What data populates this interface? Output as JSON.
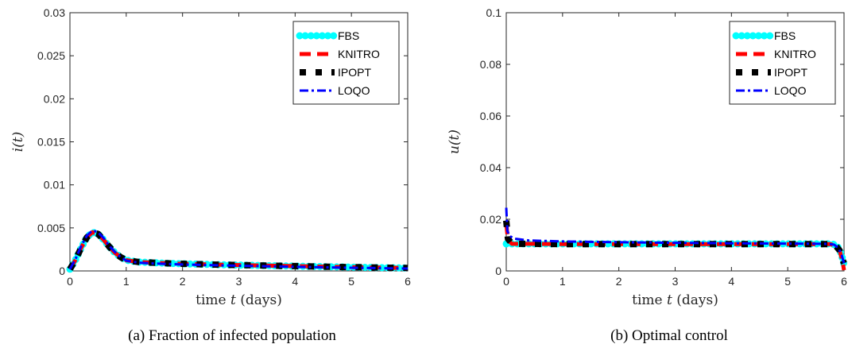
{
  "chart_data": [
    {
      "type": "line",
      "caption": "(a) Fraction of infected population",
      "xlabel": "time t (days)",
      "ylabel": "i(t)",
      "xlim": [
        0,
        6
      ],
      "ylim": [
        0,
        0.03
      ],
      "x_ticks": [
        "0",
        "1",
        "2",
        "3",
        "4",
        "5",
        "6"
      ],
      "y_ticks": [
        "0",
        "0.005",
        "0.01",
        "0.015",
        "0.02",
        "0.025",
        "0.03"
      ],
      "legend_position": "top-right",
      "series": [
        {
          "name": "FBS",
          "color": "#00ffff",
          "style": "dots-thick",
          "x": [
            0,
            0.1,
            0.2,
            0.3,
            0.4,
            0.5,
            0.6,
            0.7,
            0.8,
            0.9,
            1.0,
            1.2,
            1.4,
            1.6,
            1.8,
            2.0,
            2.5,
            3.0,
            3.5,
            4.0,
            4.5,
            5.0,
            5.5,
            6.0
          ],
          "y": [
            0.0002,
            0.0013,
            0.0027,
            0.0039,
            0.0045,
            0.0043,
            0.0036,
            0.0028,
            0.0021,
            0.0016,
            0.00125,
            0.00105,
            0.00098,
            0.00092,
            0.00087,
            0.00083,
            0.00075,
            0.00068,
            0.00062,
            0.00056,
            0.0005,
            0.00044,
            0.00039,
            0.00034
          ]
        },
        {
          "name": "KNITRO",
          "color": "#ff0000",
          "style": "dashed-thick",
          "x": [
            0,
            0.1,
            0.2,
            0.3,
            0.4,
            0.5,
            0.6,
            0.7,
            0.8,
            0.9,
            1.0,
            1.2,
            1.4,
            1.6,
            1.8,
            2.0,
            2.5,
            3.0,
            3.5,
            4.0,
            4.5,
            5.0,
            5.5,
            6.0
          ],
          "y": [
            0.0002,
            0.0013,
            0.0027,
            0.0039,
            0.0045,
            0.0043,
            0.0036,
            0.0028,
            0.0021,
            0.0016,
            0.00125,
            0.00105,
            0.00098,
            0.00092,
            0.00087,
            0.00083,
            0.00075,
            0.00068,
            0.00062,
            0.00056,
            0.0005,
            0.00044,
            0.00039,
            0.00034
          ]
        },
        {
          "name": "IPOPT",
          "color": "#000000",
          "style": "square-dots",
          "x": [
            0,
            0.1,
            0.2,
            0.3,
            0.4,
            0.5,
            0.6,
            0.7,
            0.8,
            0.9,
            1.0,
            1.2,
            1.4,
            1.6,
            1.8,
            2.0,
            2.5,
            3.0,
            3.5,
            4.0,
            4.5,
            5.0,
            5.5,
            6.0
          ],
          "y": [
            0.0002,
            0.0013,
            0.0027,
            0.0039,
            0.0045,
            0.0043,
            0.0036,
            0.0028,
            0.0021,
            0.0016,
            0.00125,
            0.00105,
            0.00098,
            0.00092,
            0.00087,
            0.00083,
            0.00075,
            0.00068,
            0.00062,
            0.00056,
            0.0005,
            0.00044,
            0.00039,
            0.00034
          ]
        },
        {
          "name": "LOQO",
          "color": "#0000ff",
          "style": "dash-dot",
          "x": [
            0,
            0.1,
            0.2,
            0.3,
            0.4,
            0.5,
            0.6,
            0.7,
            0.8,
            0.9,
            1.0,
            1.2,
            1.4,
            1.6,
            1.8,
            2.0,
            2.5,
            3.0,
            3.5,
            4.0,
            4.5,
            5.0,
            5.5,
            6.0
          ],
          "y": [
            0.0002,
            0.0014,
            0.0029,
            0.0041,
            0.0047,
            0.0045,
            0.0038,
            0.0029,
            0.0022,
            0.0016,
            0.0012,
            0.00098,
            0.0009,
            0.00084,
            0.00079,
            0.00075,
            0.00067,
            0.0006,
            0.00054,
            0.00048,
            0.00042,
            0.00037,
            0.00032,
            0.00028
          ]
        }
      ]
    },
    {
      "type": "line",
      "caption": "(b) Optimal control",
      "xlabel": "time t (days)",
      "ylabel": "u(t)",
      "xlim": [
        0,
        6
      ],
      "ylim": [
        0,
        0.1
      ],
      "x_ticks": [
        "0",
        "1",
        "2",
        "3",
        "4",
        "5",
        "6"
      ],
      "y_ticks": [
        "0",
        "0.02",
        "0.04",
        "0.06",
        "0.08",
        "0.1"
      ],
      "legend_position": "top-right",
      "series": [
        {
          "name": "FBS",
          "color": "#00ffff",
          "style": "dots-thick",
          "x": [
            0,
            0.03,
            0.1,
            0.5,
            1,
            2,
            3,
            4,
            5,
            5.75,
            5.85,
            5.92,
            5.97,
            6.0
          ],
          "y": [
            0.0105,
            0.0105,
            0.0105,
            0.0105,
            0.0105,
            0.0105,
            0.0105,
            0.0105,
            0.0105,
            0.0105,
            0.0102,
            0.0085,
            0.005,
            0.0025
          ]
        },
        {
          "name": "KNITRO",
          "color": "#ff0000",
          "style": "dashed-thick",
          "x": [
            0,
            0.03,
            0.1,
            0.5,
            1,
            2,
            3,
            4,
            5,
            5.75,
            5.85,
            5.92,
            5.97,
            6.0
          ],
          "y": [
            0.0185,
            0.012,
            0.0105,
            0.0105,
            0.0104,
            0.0104,
            0.0104,
            0.0104,
            0.0104,
            0.0104,
            0.0098,
            0.008,
            0.004,
            0.0003
          ]
        },
        {
          "name": "IPOPT",
          "color": "#000000",
          "style": "square-dots",
          "x": [
            0,
            0.03,
            0.1,
            0.5,
            1,
            2,
            3,
            4,
            5,
            5.75,
            5.85,
            5.92,
            5.97,
            6.0
          ],
          "y": [
            0.0195,
            0.0125,
            0.0105,
            0.0105,
            0.0104,
            0.0104,
            0.0104,
            0.0104,
            0.0104,
            0.0104,
            0.0098,
            0.008,
            0.0045,
            0.003
          ]
        },
        {
          "name": "LOQO",
          "color": "#0000ff",
          "style": "dash-dot",
          "x": [
            0,
            0.02,
            0.06,
            0.15,
            0.4,
            1,
            2,
            3,
            4,
            5,
            5.7,
            5.82,
            5.9,
            5.96,
            6.0
          ],
          "y": [
            0.0245,
            0.0155,
            0.0135,
            0.0125,
            0.0118,
            0.0114,
            0.0111,
            0.0109,
            0.0107,
            0.0106,
            0.0105,
            0.0102,
            0.009,
            0.006,
            0.003
          ]
        }
      ]
    }
  ]
}
